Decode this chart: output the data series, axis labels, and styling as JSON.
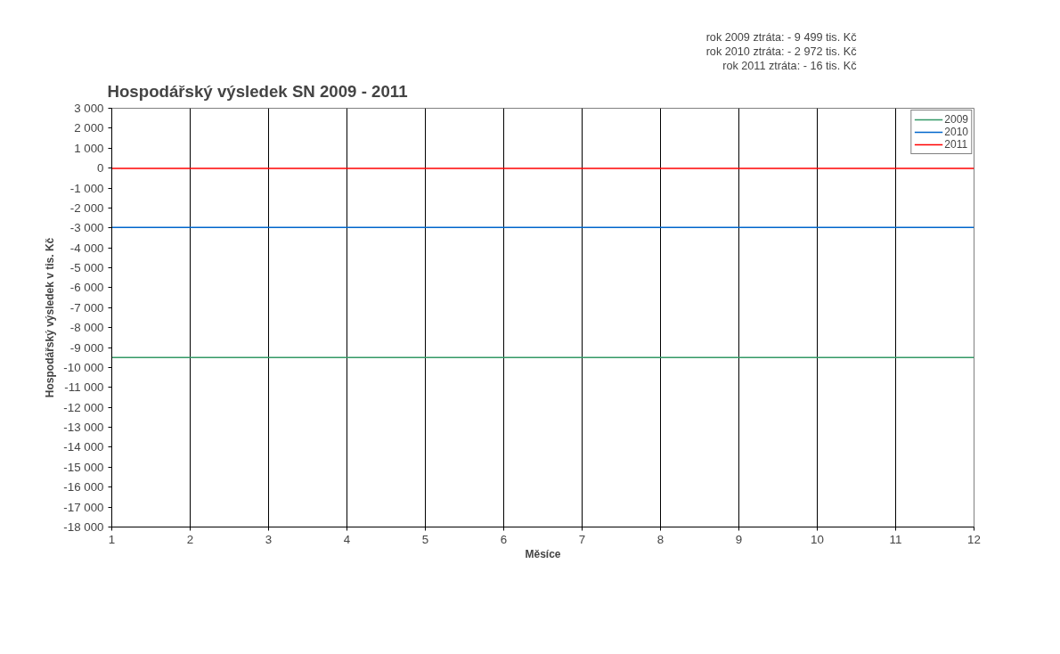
{
  "chart_data": {
    "type": "line",
    "title": "Hospodářský výsledek SN  2009 - 2011",
    "xlabel": "Měsíce",
    "ylabel": "Hospodářský výsledek v tis. Kč",
    "x": [
      1,
      12
    ],
    "series": [
      {
        "name": "2009",
        "color": "#339966",
        "values": [
          -9499,
          -9499
        ]
      },
      {
        "name": "2010",
        "color": "#0066cc",
        "values": [
          -2972,
          -2972
        ]
      },
      {
        "name": "2011",
        "color": "#ff0000",
        "values": [
          -16,
          -16
        ]
      }
    ],
    "annotations": [
      "rok 2009 ztráta:   - 9 499 tis. Kč",
      "rok 2010 ztráta:   - 2 972 tis. Kč",
      "rok 2011 ztráta:   - 16 tis. Kč"
    ],
    "xlim": [
      1,
      12
    ],
    "xticks": [
      1,
      2,
      3,
      4,
      5,
      6,
      7,
      8,
      9,
      10,
      11,
      12
    ],
    "ylim": [
      -18000,
      3000
    ],
    "yticks": [
      {
        "value": 3000,
        "label": "3 000"
      },
      {
        "value": 2000,
        "label": "2 000"
      },
      {
        "value": 1000,
        "label": "1 000"
      },
      0,
      {
        "value": -1000,
        "label": "-1 000"
      },
      {
        "value": -2000,
        "label": "-2 000"
      },
      {
        "value": -3000,
        "label": "-3 000"
      },
      {
        "value": -4000,
        "label": "-4 000"
      },
      {
        "value": -5000,
        "label": "-5 000"
      },
      {
        "value": -6000,
        "label": "-6 000"
      },
      {
        "value": -7000,
        "label": "-7 000"
      },
      {
        "value": -8000,
        "label": "-8 000"
      },
      {
        "value": -9000,
        "label": "-9 000"
      },
      {
        "value": -10000,
        "label": "-10 000"
      },
      {
        "value": -11000,
        "label": "-11 000"
      },
      {
        "value": -12000,
        "label": "-12 000"
      },
      {
        "value": -13000,
        "label": "-13 000"
      },
      {
        "value": -14000,
        "label": "-14 000"
      },
      {
        "value": -15000,
        "label": "-15 000"
      },
      {
        "value": -16000,
        "label": "-16 000"
      },
      {
        "value": -17000,
        "label": "-17 000"
      },
      {
        "value": -18000,
        "label": "-18 000"
      }
    ],
    "grid": "x",
    "legend": "top right",
    "marker": "none",
    "line_style": "solid"
  }
}
